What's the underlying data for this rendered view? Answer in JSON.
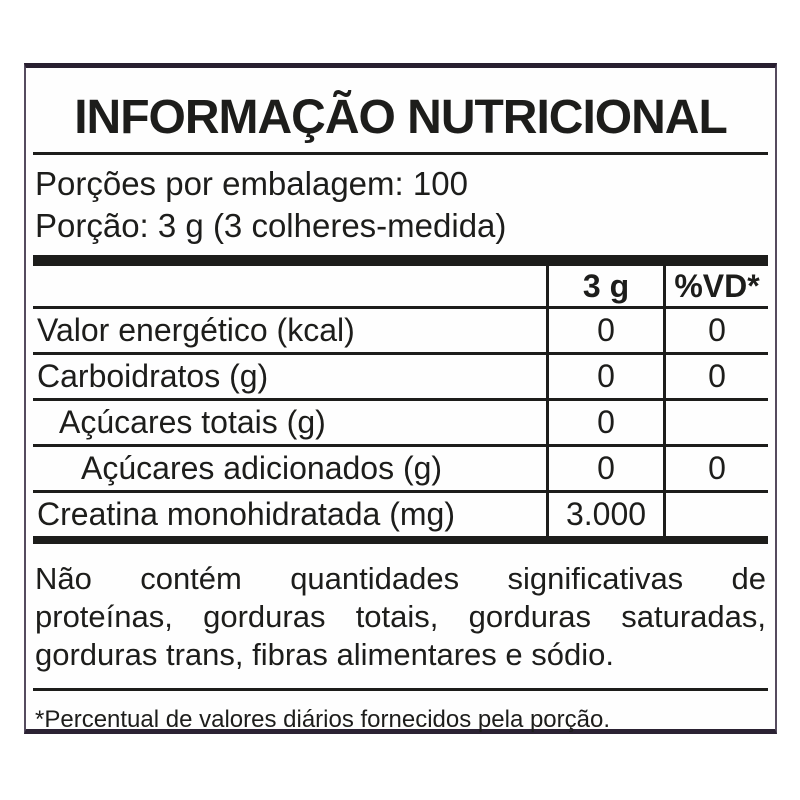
{
  "label": {
    "title": "INFORMAÇÃO NUTRICIONAL",
    "serving_info": {
      "servings_per_package": "Porções por embalagem: 100",
      "serving_size": "Porção: 3 g (3 colheres-medida)"
    },
    "table": {
      "columns": {
        "nutrient": "",
        "amount": "3 g",
        "vd": "%VD*"
      },
      "rows": [
        {
          "name": "Valor energético (kcal)",
          "amount": "0",
          "vd": "0"
        },
        {
          "name": "Carboidratos (g)",
          "amount": "0",
          "vd": "0"
        },
        {
          "name": "Açúcares totais (g)",
          "amount": "0",
          "vd": ""
        },
        {
          "name": "Açúcares adicionados (g)",
          "amount": "0",
          "vd": "0"
        },
        {
          "name": "Creatina monohidratada (mg)",
          "amount": "3.000",
          "vd": ""
        }
      ]
    },
    "no_significant_note": {
      "full_text": "Não contém quantidades significativas de proteínas, gorduras totais, gorduras saturadas, gorduras trans, fibras alimentares e sódio.",
      "lines": [
        "Não contém quantidades significativas de",
        "proteínas, gorduras totais, gorduras saturadas,",
        "gorduras trans, fibras alimentares e sódio."
      ]
    },
    "footnote": "*Percentual de valores diários fornecidos pela porção.",
    "colors": {
      "text": "#1d1d1b",
      "inner_lines": "#1d1d1b",
      "outer_border": "#2b2233",
      "background": "#ffffff"
    }
  }
}
